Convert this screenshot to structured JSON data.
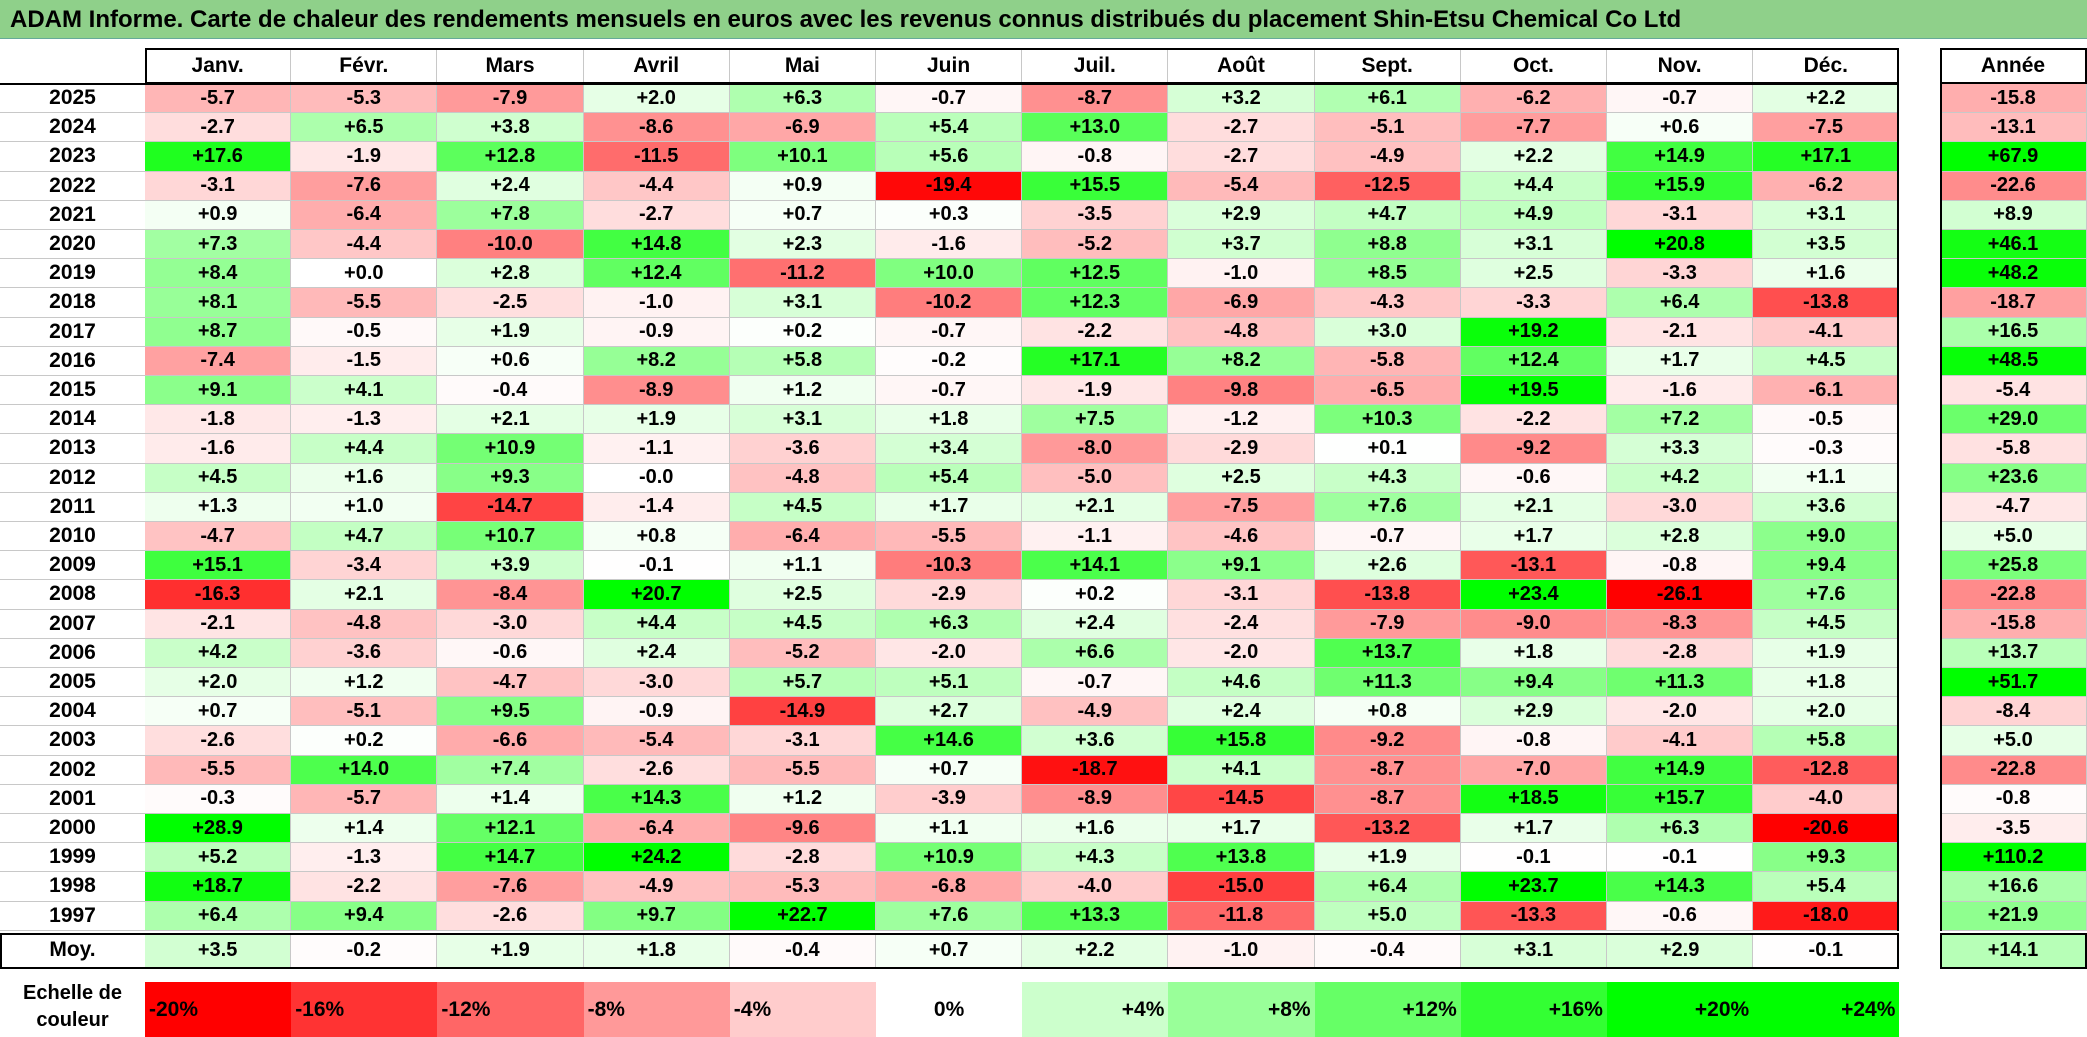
{
  "title": "ADAM Informe. Carte de chaleur des rendements mensuels en euros avec les revenus connus distribués du placement Shin-Etsu Chemical Co Ltd",
  "chart_data": {
    "type": "heatmap",
    "months": [
      "Janv.",
      "Févr.",
      "Mars",
      "Avril",
      "Mai",
      "Juin",
      "Juil.",
      "Août",
      "Sept.",
      "Oct.",
      "Nov.",
      "Déc."
    ],
    "annual_header": "Année",
    "average_label": "Moy.",
    "rows": [
      {
        "year": "2025",
        "values": [
          -5.7,
          -5.3,
          -7.9,
          2.0,
          6.3,
          -0.7,
          -8.7,
          3.2,
          6.1,
          -6.2,
          -0.7,
          2.2
        ],
        "annual": -15.8
      },
      {
        "year": "2024",
        "values": [
          -2.7,
          6.5,
          3.8,
          -8.6,
          -6.9,
          5.4,
          13.0,
          -2.7,
          -5.1,
          -7.7,
          0.6,
          -7.5
        ],
        "annual": -13.1
      },
      {
        "year": "2023",
        "values": [
          17.6,
          -1.9,
          12.8,
          -11.5,
          10.1,
          5.6,
          -0.8,
          -2.7,
          -4.9,
          2.2,
          14.9,
          17.1
        ],
        "annual": 67.9
      },
      {
        "year": "2022",
        "values": [
          -3.1,
          -7.6,
          2.4,
          -4.4,
          0.9,
          -19.4,
          15.5,
          -5.4,
          -12.5,
          4.4,
          15.9,
          -6.2
        ],
        "annual": -22.6
      },
      {
        "year": "2021",
        "values": [
          0.9,
          -6.4,
          7.8,
          -2.7,
          0.7,
          0.3,
          -3.5,
          2.9,
          4.7,
          4.9,
          -3.1,
          3.1
        ],
        "annual": 8.9
      },
      {
        "year": "2020",
        "values": [
          7.3,
          -4.4,
          -10.0,
          14.8,
          2.3,
          -1.6,
          -5.2,
          3.7,
          8.8,
          3.1,
          20.8,
          3.5
        ],
        "annual": 46.1
      },
      {
        "year": "2019",
        "values": [
          8.4,
          0.0,
          2.8,
          12.4,
          -11.2,
          10.0,
          12.5,
          -1.0,
          8.5,
          2.5,
          -3.3,
          1.6
        ],
        "annual": 48.2
      },
      {
        "year": "2018",
        "values": [
          8.1,
          -5.5,
          -2.5,
          -1.0,
          3.1,
          -10.2,
          12.3,
          -6.9,
          -4.3,
          -3.3,
          6.4,
          -13.8
        ],
        "annual": -18.7
      },
      {
        "year": "2017",
        "values": [
          8.7,
          -0.5,
          1.9,
          -0.9,
          0.2,
          -0.7,
          -2.2,
          -4.8,
          3.0,
          19.2,
          -2.1,
          -4.1
        ],
        "annual": 16.5
      },
      {
        "year": "2016",
        "values": [
          -7.4,
          -1.5,
          0.6,
          8.2,
          5.8,
          -0.2,
          17.1,
          8.2,
          -5.8,
          12.4,
          1.7,
          4.5
        ],
        "annual": 48.5
      },
      {
        "year": "2015",
        "values": [
          9.1,
          4.1,
          -0.4,
          -8.9,
          1.2,
          -0.7,
          -1.9,
          -9.8,
          -6.5,
          19.5,
          -1.6,
          -6.1
        ],
        "annual": -5.4
      },
      {
        "year": "2014",
        "values": [
          -1.8,
          -1.3,
          2.1,
          1.9,
          3.1,
          1.8,
          7.5,
          -1.2,
          10.3,
          -2.2,
          7.2,
          -0.5
        ],
        "annual": 29.0
      },
      {
        "year": "2013",
        "values": [
          -1.6,
          4.4,
          10.9,
          -1.1,
          -3.6,
          3.4,
          -8.0,
          -2.9,
          0.1,
          -9.2,
          3.3,
          -0.3
        ],
        "annual": -5.8
      },
      {
        "year": "2012",
        "values": [
          4.5,
          1.6,
          9.3,
          -0.0,
          -4.8,
          5.4,
          -5.0,
          2.5,
          4.3,
          -0.6,
          4.2,
          1.1
        ],
        "annual": 23.6
      },
      {
        "year": "2011",
        "values": [
          1.3,
          1.0,
          -14.7,
          -1.4,
          4.5,
          1.7,
          2.1,
          -7.5,
          7.6,
          2.1,
          -3.0,
          3.6
        ],
        "annual": -4.7
      },
      {
        "year": "2010",
        "values": [
          -4.7,
          4.7,
          10.7,
          0.8,
          -6.4,
          -5.5,
          -1.1,
          -4.6,
          -0.7,
          1.7,
          2.8,
          9.0
        ],
        "annual": 5.0
      },
      {
        "year": "2009",
        "values": [
          15.1,
          -3.4,
          3.9,
          -0.1,
          1.1,
          -10.3,
          14.1,
          9.1,
          2.6,
          -13.1,
          -0.8,
          9.4
        ],
        "annual": 25.8
      },
      {
        "year": "2008",
        "values": [
          -16.3,
          2.1,
          -8.4,
          20.7,
          2.5,
          -2.9,
          0.2,
          -3.1,
          -13.8,
          23.4,
          -26.1,
          7.6
        ],
        "annual": -22.8
      },
      {
        "year": "2007",
        "values": [
          -2.1,
          -4.8,
          -3.0,
          4.4,
          4.5,
          6.3,
          2.4,
          -2.4,
          -7.9,
          -9.0,
          -8.3,
          4.5
        ],
        "annual": -15.8
      },
      {
        "year": "2006",
        "values": [
          4.2,
          -3.6,
          -0.6,
          2.4,
          -5.2,
          -2.0,
          6.6,
          -2.0,
          13.7,
          1.8,
          -2.8,
          1.9
        ],
        "annual": 13.7
      },
      {
        "year": "2005",
        "values": [
          2.0,
          1.2,
          -4.7,
          -3.0,
          5.7,
          5.1,
          -0.7,
          4.6,
          11.3,
          9.4,
          11.3,
          1.8
        ],
        "annual": 51.7
      },
      {
        "year": "2004",
        "values": [
          0.7,
          -5.1,
          9.5,
          -0.9,
          -14.9,
          2.7,
          -4.9,
          2.4,
          0.8,
          2.9,
          -2.0,
          2.0
        ],
        "annual": -8.4
      },
      {
        "year": "2003",
        "values": [
          -2.6,
          0.2,
          -6.6,
          -5.4,
          -3.1,
          14.6,
          3.6,
          15.8,
          -9.2,
          -0.8,
          -4.1,
          5.8
        ],
        "annual": 5.0
      },
      {
        "year": "2002",
        "values": [
          -5.5,
          14.0,
          7.4,
          -2.6,
          -5.5,
          0.7,
          -18.7,
          4.1,
          -8.7,
          -7.0,
          14.9,
          -12.8
        ],
        "annual": -22.8
      },
      {
        "year": "2001",
        "values": [
          -0.3,
          -5.7,
          1.4,
          14.3,
          1.2,
          -3.9,
          -8.9,
          -14.5,
          -8.7,
          18.5,
          15.7,
          -4.0
        ],
        "annual": -0.8
      },
      {
        "year": "2000",
        "values": [
          28.9,
          1.4,
          12.1,
          -6.4,
          -9.6,
          1.1,
          1.6,
          1.7,
          -13.2,
          1.7,
          6.3,
          -20.6
        ],
        "annual": -3.5
      },
      {
        "year": "1999",
        "values": [
          5.2,
          -1.3,
          14.7,
          24.2,
          -2.8,
          10.9,
          4.3,
          13.8,
          1.9,
          -0.1,
          -0.1,
          9.3
        ],
        "annual": 110.2
      },
      {
        "year": "1998",
        "values": [
          18.7,
          -2.2,
          -7.6,
          -4.9,
          -5.3,
          -6.8,
          -4.0,
          -15.0,
          6.4,
          23.7,
          14.3,
          5.4
        ],
        "annual": 16.6
      },
      {
        "year": "1997",
        "values": [
          6.4,
          9.4,
          -2.6,
          9.7,
          22.7,
          7.6,
          13.3,
          -11.8,
          5.0,
          -13.3,
          -0.6,
          -18.0
        ],
        "annual": 21.9
      }
    ],
    "average": {
      "values": [
        3.5,
        -0.2,
        1.9,
        1.8,
        -0.4,
        0.7,
        2.2,
        -1.0,
        -0.4,
        3.1,
        2.9,
        -0.1
      ],
      "annual": 14.1
    },
    "legend": {
      "label": "Echelle de couleur",
      "steps": [
        "-20%",
        "-16%",
        "-12%",
        "-8%",
        "-4%",
        "0%",
        "+4%",
        "+8%",
        "+12%",
        "+16%",
        "+20%",
        "+24%"
      ],
      "values": [
        -20,
        -16,
        -12,
        -8,
        -4,
        0,
        4,
        8,
        12,
        16,
        20,
        24
      ]
    },
    "colors": {
      "negative": "#ff0000",
      "zero": "#ffffff",
      "positive": "#00ff00"
    }
  }
}
